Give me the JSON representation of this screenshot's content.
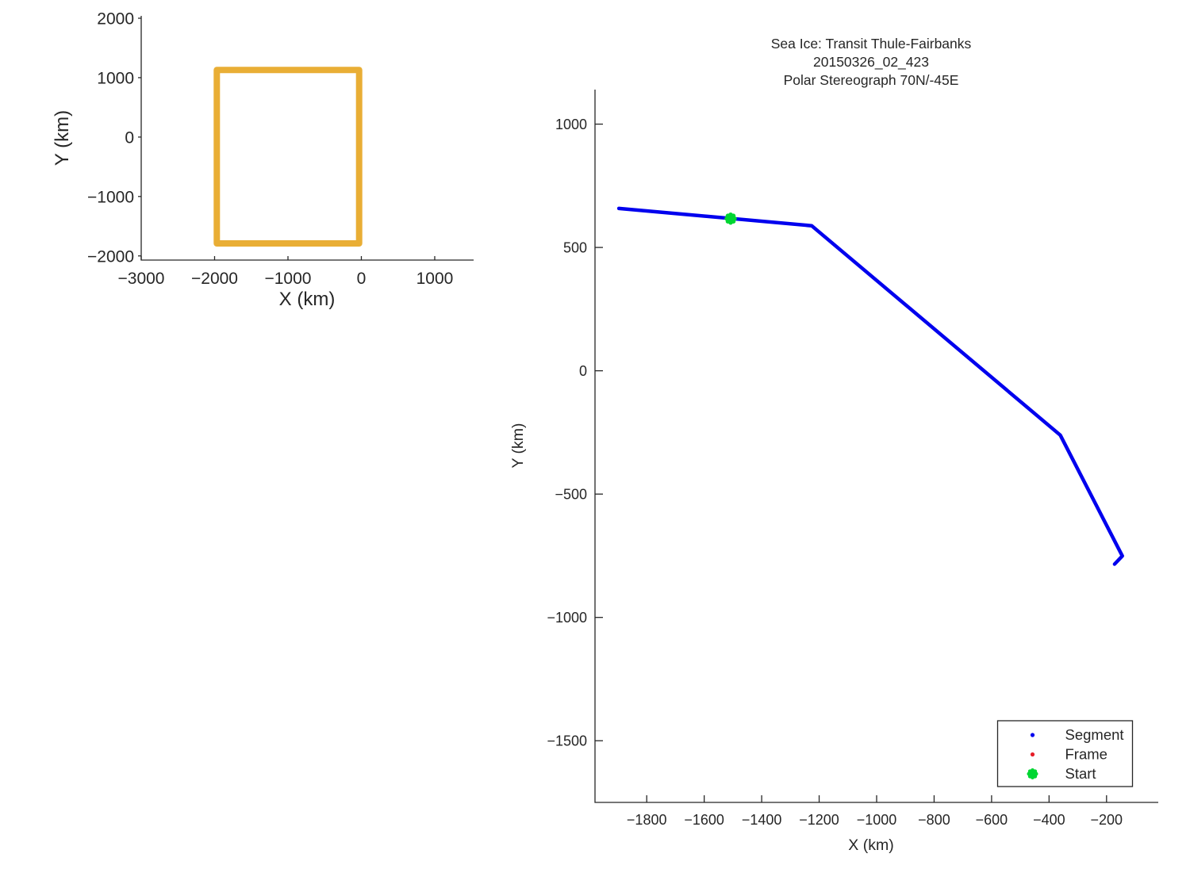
{
  "window": {
    "background": "#ffffff",
    "text_color": "#262626"
  },
  "chart_data": [
    {
      "id": "overview",
      "type": "line",
      "title": "",
      "xlabel": "X (km)",
      "ylabel": "Y (km)",
      "xlim": [
        -3000,
        1530
      ],
      "ylim": [
        -2070,
        2040
      ],
      "x_ticks": [
        -3000,
        -2000,
        -1000,
        0,
        1000
      ],
      "y_ticks": [
        2000,
        1000,
        0,
        -1000,
        -2000
      ],
      "grid": false,
      "legend": null,
      "series": [
        {
          "name": "swath-extent-rectangle",
          "color": "#e9ae35",
          "linewidth": 8,
          "closed": true,
          "points": [
            [
              -1970,
              1130
            ],
            [
              -30,
              1130
            ],
            [
              -30,
              -1790
            ],
            [
              -1970,
              -1790
            ]
          ]
        }
      ]
    },
    {
      "id": "transit-map",
      "type": "line",
      "title_lines": [
        "Sea Ice: Transit Thule-Fairbanks",
        "20150326_02_423",
        "Polar Stereograph 70N/-45E"
      ],
      "xlabel": "X (km)",
      "ylabel": "Y (km)",
      "xlim": [
        -1980,
        -20
      ],
      "ylim": [
        -1750,
        1140
      ],
      "x_ticks": [
        -1800,
        -1600,
        -1400,
        -1200,
        -1000,
        -800,
        -600,
        -400,
        -200
      ],
      "y_ticks": [
        1000,
        500,
        0,
        -500,
        -1000,
        -1500
      ],
      "grid": false,
      "series": [
        {
          "name": "Segment",
          "color": "#0000ee",
          "linewidth": 4.5,
          "closed": false,
          "points": [
            [
              -1897,
              658
            ],
            [
              -1226,
              588
            ],
            [
              -361,
              -261
            ],
            [
              -145,
              -751
            ],
            [
              -172,
              -784
            ]
          ]
        }
      ],
      "start_marker": {
        "label": "Start",
        "color": "#00d632",
        "point": [
          -1508,
          617
        ]
      },
      "legend": {
        "position": "lower-right",
        "entries": [
          {
            "label": "Segment",
            "marker": "dot",
            "color": "#0000ee"
          },
          {
            "label": "Frame",
            "marker": "dot",
            "color": "#e61e28"
          },
          {
            "label": "Start",
            "marker": "burst",
            "color": "#00d632"
          }
        ]
      }
    }
  ]
}
